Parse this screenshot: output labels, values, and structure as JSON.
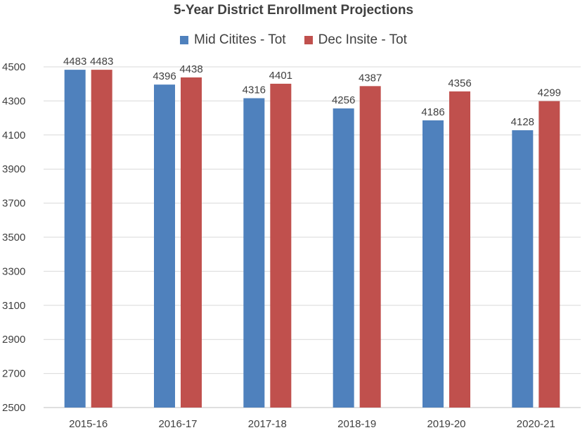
{
  "chart_data": {
    "type": "bar",
    "title": "5-Year District Enrollment Projections",
    "xlabel": "",
    "ylabel": "",
    "categories": [
      "2015-16",
      "2016-17",
      "2017-18",
      "2018-19",
      "2019-20",
      "2020-21"
    ],
    "series": [
      {
        "name": "Mid Citites - Tot",
        "color": "#4f81bd",
        "values": [
          4483,
          4396,
          4316,
          4256,
          4186,
          4128
        ]
      },
      {
        "name": "Dec Insite - Tot",
        "color": "#c0504d",
        "values": [
          4483,
          4438,
          4401,
          4387,
          4356,
          4299
        ]
      }
    ],
    "ylim": [
      2500,
      4500
    ],
    "yticks": [
      2500,
      2700,
      2900,
      3100,
      3300,
      3500,
      3700,
      3900,
      4100,
      4300,
      4500
    ],
    "grid": true,
    "legend_position": "top"
  }
}
